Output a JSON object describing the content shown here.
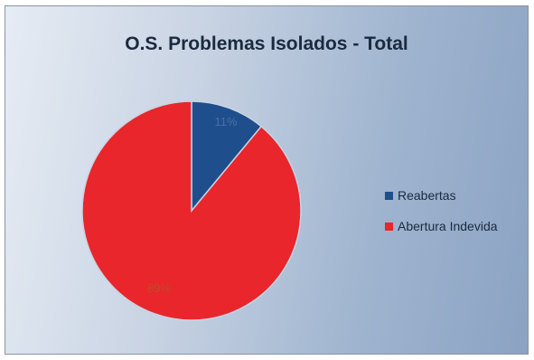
{
  "chart_data": {
    "type": "pie",
    "title": "O.S. Problemas Isolados - Total",
    "slices": [
      {
        "label": "Reabertas",
        "value": 11,
        "display": "11%",
        "color": "#1f4e8c"
      },
      {
        "label": "Abertura Indevida",
        "value": 89,
        "display": "89%",
        "color": "#e8262b"
      }
    ],
    "legend_position": "right"
  }
}
